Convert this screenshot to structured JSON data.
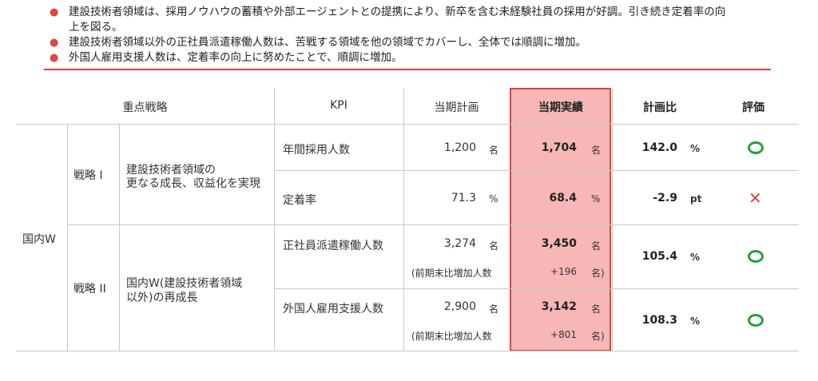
{
  "bullets": [
    "建設技術者領域は、採用ノウハウの蓄積や外部エージェントとの提携により、新卒を含む未経験社員の採用が好調。引き続き定着率の向上を図る。",
    "建設技術者領域以外の正社員派遣稼働人数は、苦戦する領域を他の領域でカバーし、全体では順調に増加。",
    "外国人雇用支援人数は、定着率の向上に努めたことで、順調に増加。"
  ],
  "bullet1_lines": [
    "建設技術者領域は、採用ノウハウの蓄積や外部エージェントとの提携により、新卒を含む未経験社員の採用が好調。引き続き定着率の向",
    "上を図る。"
  ],
  "headers": {
    "strategy": "重点戦略",
    "kpi": "KPI",
    "plan": "当期計画",
    "actual": "当期実績",
    "ratio": "計画比",
    "eval": "評価"
  },
  "segment": "国内W",
  "strategy1": {
    "name": "戦略 I",
    "desc_line1": "建設技術者領域の",
    "desc_line2": "更なる成長、収益化を実現"
  },
  "strategy2": {
    "name": "戦略 II",
    "desc_line1": "国内W(建設技術者領域",
    "desc_line2": "以外)の再成長"
  },
  "rows": [
    {
      "kpi": "年間採用人数",
      "plan": "1,200",
      "plan_unit": "名",
      "actual": "1,704",
      "actual_unit": "名",
      "ratio": "142.0",
      "ratio_unit": "%",
      "eval": "circle-icon"
    },
    {
      "kpi": "定着率",
      "plan": "71.3",
      "plan_unit": "%",
      "actual": "68.4",
      "actual_unit": "%",
      "ratio": "-2.9",
      "ratio_unit": "pt",
      "eval": "cross-icon"
    },
    {
      "kpi": "正社員派遣稼働人数",
      "plan": "3,274",
      "plan_unit": "名",
      "actual": "3,450",
      "actual_unit": "名",
      "sub_label": "(前期末比増加人数",
      "sub_value": "+196",
      "sub_unit": "名)",
      "ratio": "105.4",
      "ratio_unit": "%",
      "eval": "circle-icon"
    },
    {
      "kpi": "外国人雇用支援人数",
      "plan": "2,900",
      "plan_unit": "名",
      "actual": "3,142",
      "actual_unit": "名",
      "sub_label": "(前期末比増加人数",
      "sub_value": "+801",
      "sub_unit": "名)",
      "ratio": "108.3",
      "ratio_unit": "%",
      "eval": "circle-icon"
    }
  ],
  "colors": {
    "accent": "#e0443d",
    "highlight": "#f7b7b7",
    "ok": "#2a9e3a"
  }
}
